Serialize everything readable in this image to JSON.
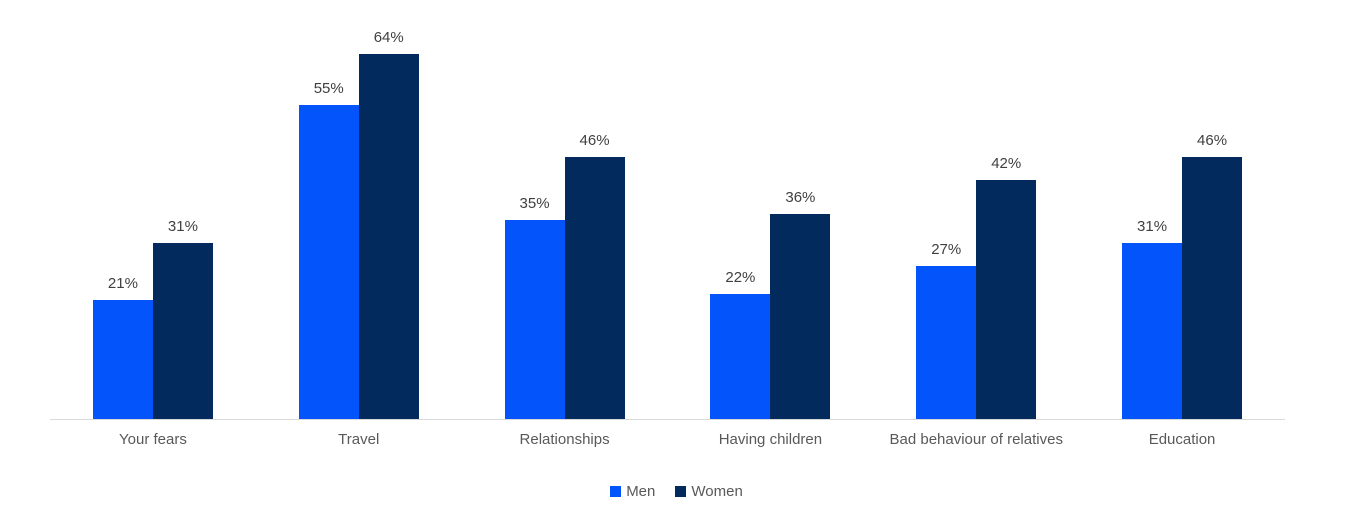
{
  "chart_data": {
    "type": "bar",
    "categories": [
      "Your fears",
      "Travel",
      "Relationships",
      "Having children",
      "Bad behaviour of relatives",
      "Education"
    ],
    "series": [
      {
        "name": "Men",
        "color": "#0355fb",
        "values": [
          21,
          55,
          35,
          22,
          27,
          31
        ]
      },
      {
        "name": "Women",
        "color": "#022a5c",
        "values": [
          31,
          64,
          46,
          36,
          42,
          46
        ]
      }
    ],
    "value_suffix": "%",
    "title": "",
    "xlabel": "",
    "ylabel": "",
    "ylim": [
      0,
      70
    ],
    "grid": false,
    "legend_position": "bottom",
    "value_labels_shown": true
  },
  "colors": {
    "men": "#0355fb",
    "women": "#022a5c",
    "value_label_text": "#404040",
    "category_text": "#595959",
    "legend_text": "#595959",
    "axis_line": "#d9d9d9",
    "background": "#ffffff"
  }
}
